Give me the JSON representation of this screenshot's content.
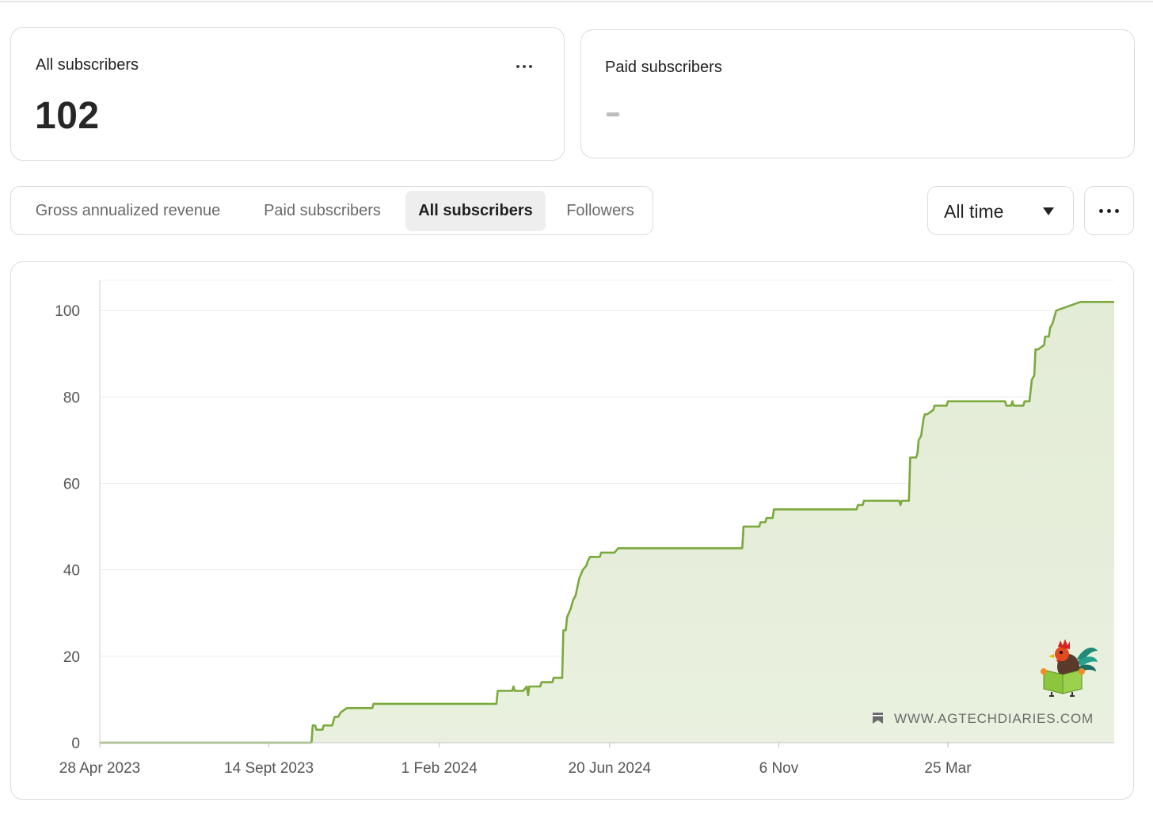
{
  "cards": {
    "all": {
      "label": "All subscribers",
      "value": "102"
    },
    "paid": {
      "label": "Paid subscribers",
      "value": ""
    }
  },
  "tabs": [
    {
      "label": "Gross annualized revenue",
      "active": false
    },
    {
      "label": "Paid subscribers",
      "active": false
    },
    {
      "label": "All subscribers",
      "active": true
    },
    {
      "label": "Followers",
      "active": false
    }
  ],
  "period": {
    "label": "All time"
  },
  "icons": {
    "card_more": "more-horizontal-icon",
    "period_caret": "caret-down-icon",
    "chart_menu": "more-horizontal-icon",
    "watermark": "bookmark-icon",
    "mascot": "rooster-reading-logo"
  },
  "colors": {
    "line": "#7aa93c",
    "fill": "#e3ecd6",
    "grid": "#ececec"
  },
  "watermark": {
    "text": "WWW.AGTECHDIARIES.COM"
  },
  "chart_data": {
    "type": "area",
    "xlabel": "",
    "ylabel": "",
    "ylim": [
      0,
      107
    ],
    "yticks": [
      0,
      20,
      40,
      60,
      80,
      100
    ],
    "xticks": [
      "28 Apr 2023",
      "14 Sept 2023",
      "1 Feb 2024",
      "20 Jun 2024",
      "6 Nov",
      "25 Mar"
    ],
    "xtick_dates": [
      "2023-04-28",
      "2023-09-14",
      "2024-02-01",
      "2024-06-20",
      "2024-11-06",
      "2025-03-25"
    ],
    "x_end": "2025-07-12",
    "grid": true,
    "series": [
      {
        "x": [
          "2023-04-28",
          "2023-10-19",
          "2023-10-20",
          "2023-10-22",
          "2023-10-23",
          "2023-10-28",
          "2023-10-29",
          "2023-11-05",
          "2023-11-07",
          "2023-11-10",
          "2023-11-12",
          "2023-11-17",
          "2023-12-08",
          "2023-12-09",
          "2024-03-19",
          "2024-03-20",
          "2024-04-01",
          "2024-04-02",
          "2024-04-03",
          "2024-04-10",
          "2024-04-13",
          "2024-04-14",
          "2024-04-15",
          "2024-04-16",
          "2024-04-24",
          "2024-04-25",
          "2024-05-04",
          "2024-05-05",
          "2024-05-12",
          "2024-05-13",
          "2024-05-15",
          "2024-05-16",
          "2024-05-19",
          "2024-05-21",
          "2024-05-23",
          "2024-05-26",
          "2024-05-29",
          "2024-06-01",
          "2024-06-02",
          "2024-06-04",
          "2024-06-07",
          "2024-06-12",
          "2024-06-13",
          "2024-06-24",
          "2024-06-27",
          "2024-06-28",
          "2024-10-07",
          "2024-10-08",
          "2024-10-21",
          "2024-10-22",
          "2024-10-26",
          "2024-10-27",
          "2024-11-01",
          "2024-11-02",
          "2025-01-09",
          "2025-01-10",
          "2025-01-14",
          "2025-01-15",
          "2025-02-13",
          "2025-02-14",
          "2025-02-15",
          "2025-02-21",
          "2025-02-22",
          "2025-02-27",
          "2025-02-28",
          "2025-03-01",
          "2025-03-03",
          "2025-03-05",
          "2025-03-06",
          "2025-03-08",
          "2025-03-13",
          "2025-03-14",
          "2025-03-24",
          "2025-03-25",
          "2025-05-11",
          "2025-05-12",
          "2025-05-16",
          "2025-05-17",
          "2025-05-18",
          "2025-05-26",
          "2025-05-27",
          "2025-05-31",
          "2025-06-02",
          "2025-06-04",
          "2025-06-05",
          "2025-06-07",
          "2025-06-12",
          "2025-06-13",
          "2025-06-16",
          "2025-06-17",
          "2025-06-19",
          "2025-06-21",
          "2025-06-22",
          "2025-07-12"
        ],
        "y": [
          0,
          0,
          4,
          4,
          3,
          3,
          4,
          4,
          6,
          6,
          7,
          8,
          8,
          9,
          9,
          12,
          12,
          13,
          12,
          12,
          13,
          11,
          13,
          13,
          13,
          14,
          14,
          15,
          15,
          26,
          26,
          29,
          31,
          33,
          34,
          38,
          40,
          41,
          42,
          43,
          43,
          43,
          44,
          44,
          45,
          45,
          45,
          50,
          50,
          51,
          51,
          52,
          52,
          54,
          54,
          55,
          55,
          56,
          56,
          55,
          56,
          56,
          66,
          66,
          67,
          70,
          71,
          75,
          76,
          76,
          77,
          78,
          78,
          79,
          79,
          78,
          78,
          79,
          78,
          78,
          79,
          79,
          84,
          85,
          91,
          91,
          92,
          94,
          94,
          96,
          97,
          99,
          100,
          102
        ]
      }
    ]
  }
}
